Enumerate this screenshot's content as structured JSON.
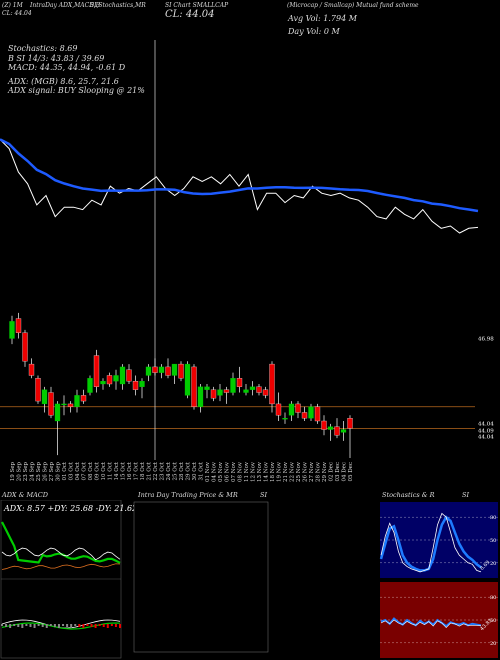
{
  "header": {
    "line1_left": "(Z) 1M",
    "line1_indicators": "IntraDay ADX,MACD,B",
    "line1_stoch": "SI,Stochastics,MR",
    "line1_chart": "SI Chart SMALLCAP",
    "line1_desc": "(Microcap / Smallcap) Mutual fund scheme",
    "line2_left": "CL: 44.04",
    "line2_mid": "CL: 44.04",
    "avg_vol": "Avg Vol: 1.794  M",
    "day_vol": "Day Vol: 0  M"
  },
  "indicators": {
    "stochastics": "Stochastics: 8.69",
    "bands": "B                  SI 14/3: 43.83 / 39.69",
    "macd": "MACD: 44.35, 44.94, -0.61 D",
    "adx": "ADX:                      (MGB) 8.6,  25.7,  21.6",
    "adx_signal": "ADX  signal:                 BUY Slooping @ 21%"
  },
  "price_labels": {
    "upper": "46.98",
    "close1": "44.04",
    "close2": "44.09",
    "close3": "44.04"
  },
  "dates": [
    "19 Sep",
    "20 Sep",
    "23 Sep",
    "24 Sep",
    "25 Sep",
    "26 Sep",
    "27 Sep",
    "30 Sep",
    "01 Oct",
    "03 Oct",
    "04 Oct",
    "07 Oct",
    "08 Oct",
    "09 Oct",
    "10 Oct",
    "11 Oct",
    "14 Oct",
    "15 Oct",
    "16 Oct",
    "17 Oct",
    "18 Oct",
    "21 Oct",
    "22 Oct",
    "23 Oct",
    "24 Oct",
    "25 Oct",
    "28 Oct",
    "29 Oct",
    "30 Oct",
    "31 Oct",
    "01 Nov",
    "04 Nov",
    "05 Nov",
    "06 Nov",
    "07 Nov",
    "08 Nov",
    "11 Nov",
    "12 Nov",
    "13 Nov",
    "14 Nov",
    "18 Nov",
    "19 Nov",
    "21 Nov",
    "22 Nov",
    "25 Nov",
    "26 Nov",
    "27 Nov",
    "28 Nov",
    "29 Nov",
    "02 Dec",
    "03 Dec",
    "04 Dec",
    "05 Dec"
  ],
  "panels": {
    "adx_title": "ADX  & MACD",
    "adx_values": "ADX: 8.57  +DY: 25.68  -DY: 21.62",
    "intra_title": "Intra  Day Trading Price  & MR",
    "intra_si": "SI",
    "stoch_title": "Stochastics & R",
    "stoch_si": "SI",
    "stoch_ticks": [
      "80",
      "50",
      "20"
    ],
    "rsi_ticks": [
      "80",
      "50",
      "20"
    ],
    "stoch_value": "8.69",
    "rsi_value": "43.83"
  },
  "colors": {
    "bullish": "#00cc00",
    "bearish": "#ee0000",
    "sma": "#1e5bff",
    "level": "#b8681e"
  },
  "chart_data": {
    "type": "candlestick",
    "candles": [
      {
        "o": 47.2,
        "h": 48.0,
        "l": 47.0,
        "c": 47.8
      },
      {
        "o": 47.9,
        "h": 48.1,
        "l": 47.2,
        "c": 47.4
      },
      {
        "o": 47.4,
        "h": 47.5,
        "l": 46.2,
        "c": 46.4
      },
      {
        "o": 46.3,
        "h": 46.5,
        "l": 45.8,
        "c": 45.9
      },
      {
        "o": 45.8,
        "h": 45.9,
        "l": 44.9,
        "c": 45.0
      },
      {
        "o": 44.9,
        "h": 45.5,
        "l": 44.6,
        "c": 45.4
      },
      {
        "o": 45.3,
        "h": 45.5,
        "l": 44.4,
        "c": 44.5
      },
      {
        "o": 44.3,
        "h": 45.0,
        "l": 43.1,
        "c": 44.9
      },
      {
        "o": 44.9,
        "h": 45.2,
        "l": 44.5,
        "c": 44.9
      },
      {
        "o": 44.9,
        "h": 45.0,
        "l": 44.6,
        "c": 44.8
      },
      {
        "o": 44.8,
        "h": 45.4,
        "l": 44.6,
        "c": 45.2
      },
      {
        "o": 45.2,
        "h": 45.4,
        "l": 44.9,
        "c": 45.0
      },
      {
        "o": 45.3,
        "h": 45.9,
        "l": 45.2,
        "c": 45.8
      },
      {
        "o": 46.6,
        "h": 46.8,
        "l": 45.3,
        "c": 45.5
      },
      {
        "o": 45.6,
        "h": 45.8,
        "l": 45.4,
        "c": 45.7
      },
      {
        "o": 45.9,
        "h": 46.0,
        "l": 45.5,
        "c": 45.6
      },
      {
        "o": 45.7,
        "h": 46.1,
        "l": 45.4,
        "c": 45.9
      },
      {
        "o": 45.6,
        "h": 46.3,
        "l": 45.4,
        "c": 46.2
      },
      {
        "o": 46.1,
        "h": 46.3,
        "l": 45.6,
        "c": 45.7
      },
      {
        "o": 45.7,
        "h": 45.9,
        "l": 45.2,
        "c": 45.4
      },
      {
        "o": 45.5,
        "h": 45.8,
        "l": 45.1,
        "c": 45.7
      },
      {
        "o": 45.9,
        "h": 46.3,
        "l": 45.7,
        "c": 46.2
      },
      {
        "o": 46.2,
        "h": 46.5,
        "l": 45.9,
        "c": 46.0
      },
      {
        "o": 46.0,
        "h": 46.3,
        "l": 45.8,
        "c": 46.2
      },
      {
        "o": 46.2,
        "h": 46.5,
        "l": 45.8,
        "c": 45.9
      },
      {
        "o": 45.9,
        "h": 46.3,
        "l": 45.6,
        "c": 46.3
      },
      {
        "o": 46.3,
        "h": 46.4,
        "l": 45.7,
        "c": 45.8
      },
      {
        "o": 45.2,
        "h": 46.4,
        "l": 45.1,
        "c": 46.3
      },
      {
        "o": 46.2,
        "h": 46.3,
        "l": 44.7,
        "c": 44.8
      },
      {
        "o": 44.8,
        "h": 45.6,
        "l": 44.6,
        "c": 45.5
      },
      {
        "o": 45.4,
        "h": 45.6,
        "l": 45.1,
        "c": 45.5
      },
      {
        "o": 45.4,
        "h": 45.5,
        "l": 45.0,
        "c": 45.1
      },
      {
        "o": 45.2,
        "h": 45.6,
        "l": 45.0,
        "c": 45.4
      },
      {
        "o": 45.4,
        "h": 45.5,
        "l": 44.9,
        "c": 45.3
      },
      {
        "o": 45.3,
        "h": 46.0,
        "l": 45.2,
        "c": 45.8
      },
      {
        "o": 45.8,
        "h": 46.2,
        "l": 45.3,
        "c": 45.5
      },
      {
        "o": 45.3,
        "h": 45.6,
        "l": 45.2,
        "c": 45.4
      },
      {
        "o": 45.4,
        "h": 45.7,
        "l": 45.2,
        "c": 45.5
      },
      {
        "o": 45.5,
        "h": 45.6,
        "l": 45.2,
        "c": 45.3
      },
      {
        "o": 45.4,
        "h": 45.5,
        "l": 45.1,
        "c": 45.2
      },
      {
        "o": 46.3,
        "h": 46.4,
        "l": 44.6,
        "c": 44.9
      },
      {
        "o": 44.9,
        "h": 45.3,
        "l": 44.3,
        "c": 44.5
      },
      {
        "o": 44.4,
        "h": 44.6,
        "l": 44.2,
        "c": 44.4
      },
      {
        "o": 44.5,
        "h": 45.0,
        "l": 44.3,
        "c": 44.9
      },
      {
        "o": 44.9,
        "h": 45.0,
        "l": 44.4,
        "c": 44.6
      },
      {
        "o": 44.6,
        "h": 44.8,
        "l": 44.3,
        "c": 44.4
      },
      {
        "o": 44.4,
        "h": 44.9,
        "l": 44.3,
        "c": 44.8
      },
      {
        "o": 44.8,
        "h": 44.9,
        "l": 44.2,
        "c": 44.3
      },
      {
        "o": 44.3,
        "h": 44.5,
        "l": 43.8,
        "c": 44.0
      },
      {
        "o": 44.0,
        "h": 44.2,
        "l": 43.6,
        "c": 44.1
      },
      {
        "o": 44.1,
        "h": 44.4,
        "l": 43.7,
        "c": 43.8
      },
      {
        "o": 43.9,
        "h": 44.3,
        "l": 43.6,
        "c": 44.0
      },
      {
        "o": 44.4,
        "h": 44.5,
        "l": 43.0,
        "c": 44.04
      }
    ],
    "price_levels": [
      44.8,
      44.04
    ],
    "ylim": [
      43.0,
      48.2
    ]
  }
}
